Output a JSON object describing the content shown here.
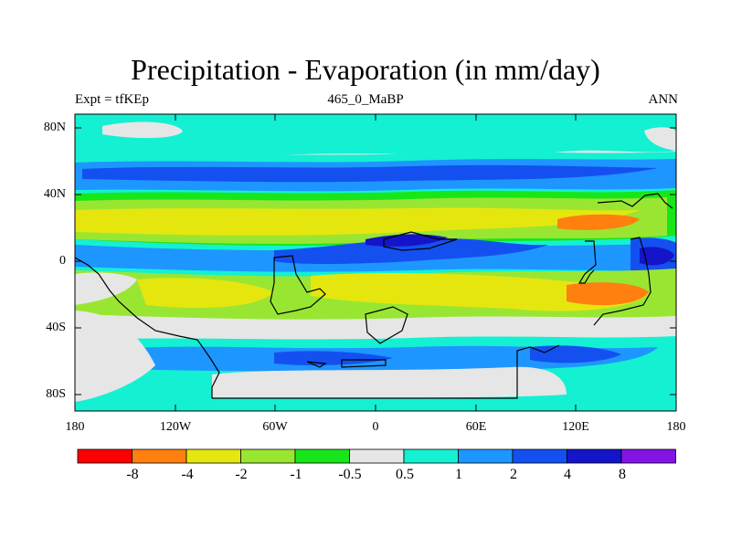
{
  "title": "Precipitation - Evaporation (in mm/day)",
  "left_label": "Expt = tfKEp",
  "center_label": "465_0_MaBP",
  "right_label": "ANN",
  "lat_labels": [
    "80N",
    "40N",
    "0",
    "40S",
    "80S"
  ],
  "lon_labels": [
    "180",
    "120W",
    "60W",
    "0",
    "60E",
    "120E",
    "180"
  ],
  "colorbar": {
    "labels": [
      "-8",
      "-4",
      "-2",
      "-1",
      "-0.5",
      "0.5",
      "1",
      "2",
      "4",
      "8"
    ],
    "colors": [
      "#ff0000",
      "#ff7f0f",
      "#e6e60f",
      "#99e632",
      "#19e619",
      "#e6e6e6",
      "#14f0d2",
      "#1e96ff",
      "#1450f0",
      "#1414c8",
      "#8214e6"
    ]
  },
  "map_colors": {
    "neutral": "#e6e6e6",
    "cyan": "#14f0d2",
    "light_blue": "#1e96ff",
    "blue": "#1450f0",
    "dark_blue": "#1414c8",
    "yellow": "#e6e60f",
    "light_green": "#99e632",
    "green": "#19e619",
    "orange": "#ff7f0f"
  }
}
